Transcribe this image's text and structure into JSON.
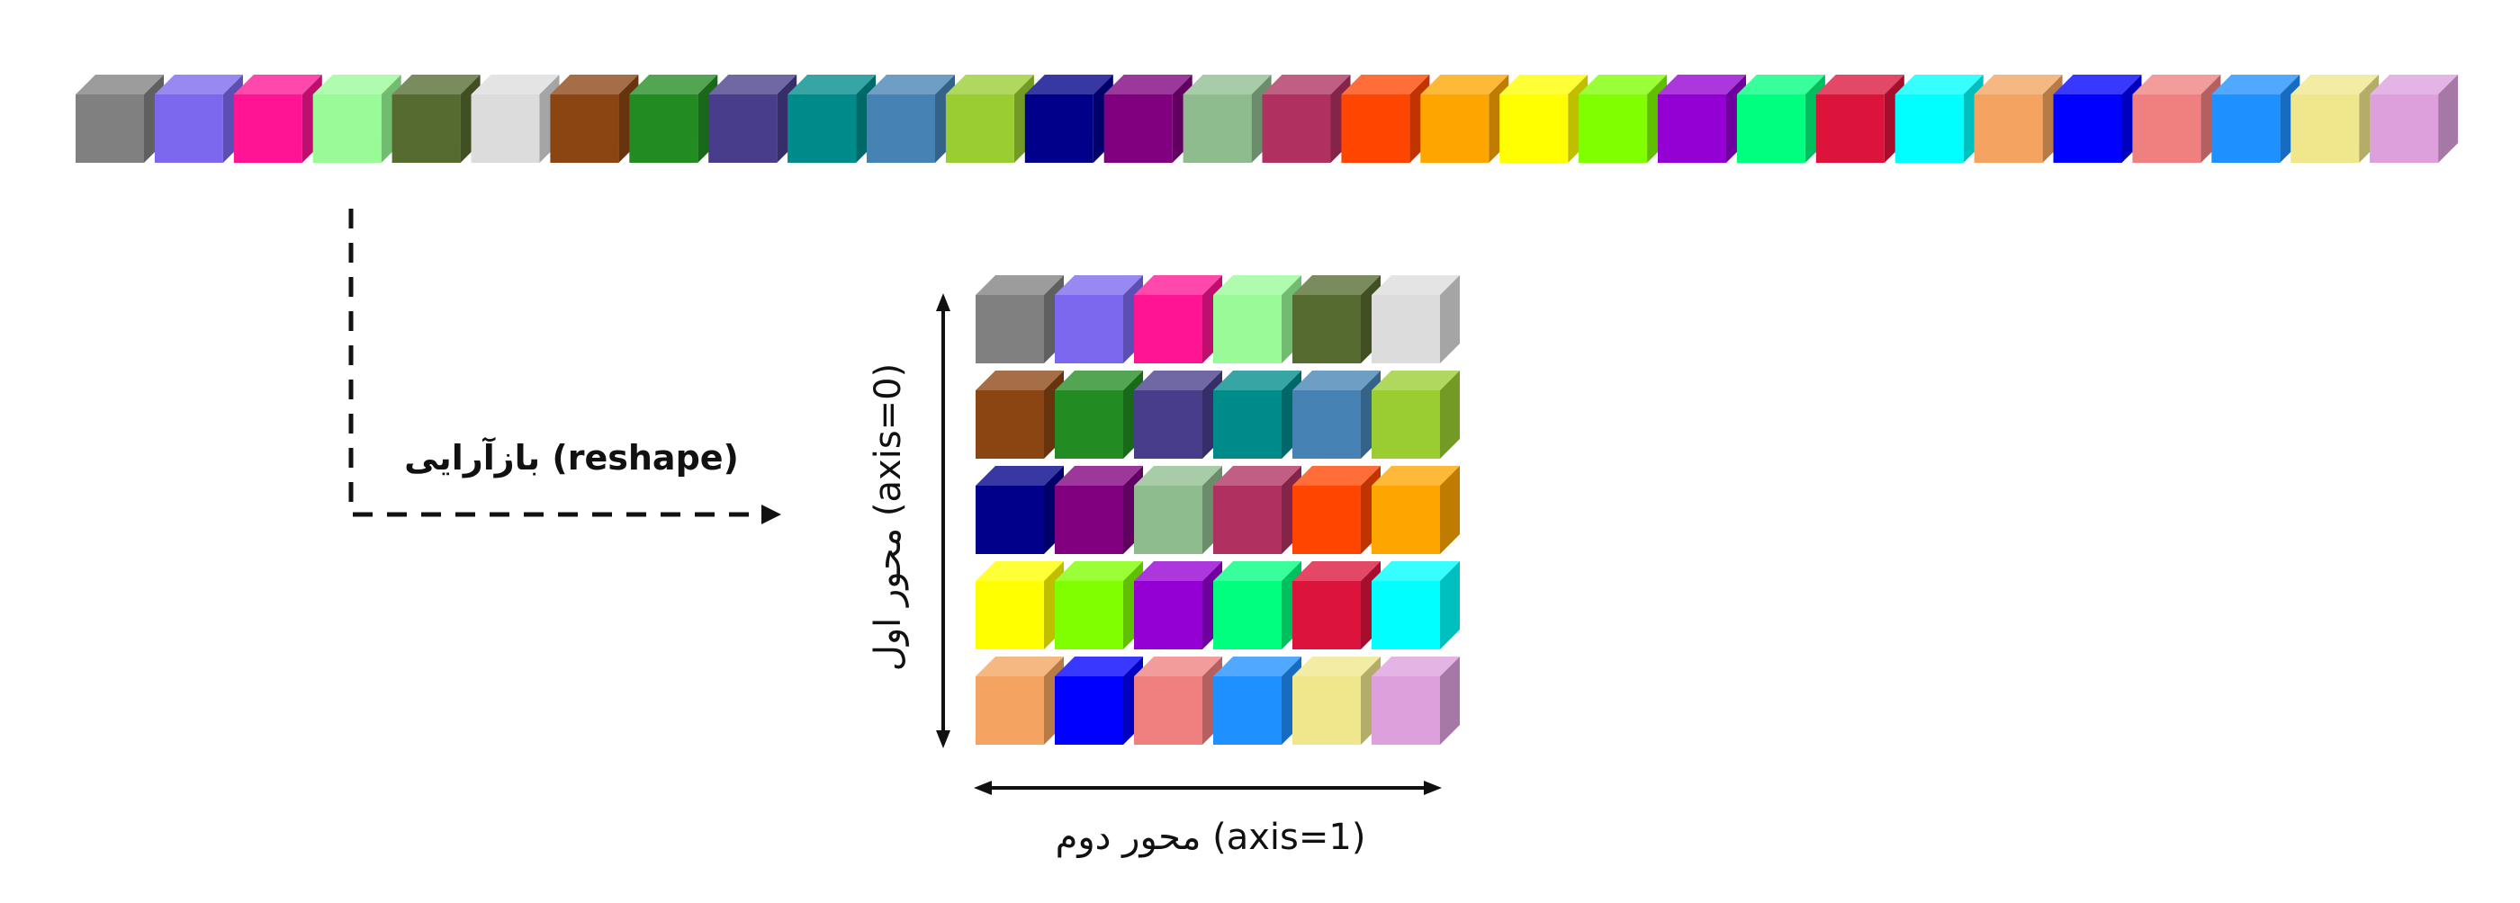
{
  "colors": [
    "#808080",
    "#7B68EE",
    "#FF1493",
    "#98FB98",
    "#556B2F",
    "#DCDCDC",
    "#8B4513",
    "#228B22",
    "#483D8B",
    "#008B8B",
    "#4682B4",
    "#9ACD32",
    "#00008B",
    "#800080",
    "#8FBC8F",
    "#B03060",
    "#FF4500",
    "#FFA500",
    "#FFFF00",
    "#7FFF00",
    "#9400D3",
    "#00FF7F",
    "#DC143C",
    "#00FFFF",
    "#F4A460",
    "#0000FF",
    "#F08080",
    "#1E90FF",
    "#F0E68C",
    "#DDA0DD"
  ],
  "grid": {
    "rows": 5,
    "cols": 6
  },
  "labels": {
    "reshape": "بازآرایی (reshape)",
    "axis0": "محور اول (axis=0)",
    "axis1": "محور دوم (axis=1)"
  }
}
